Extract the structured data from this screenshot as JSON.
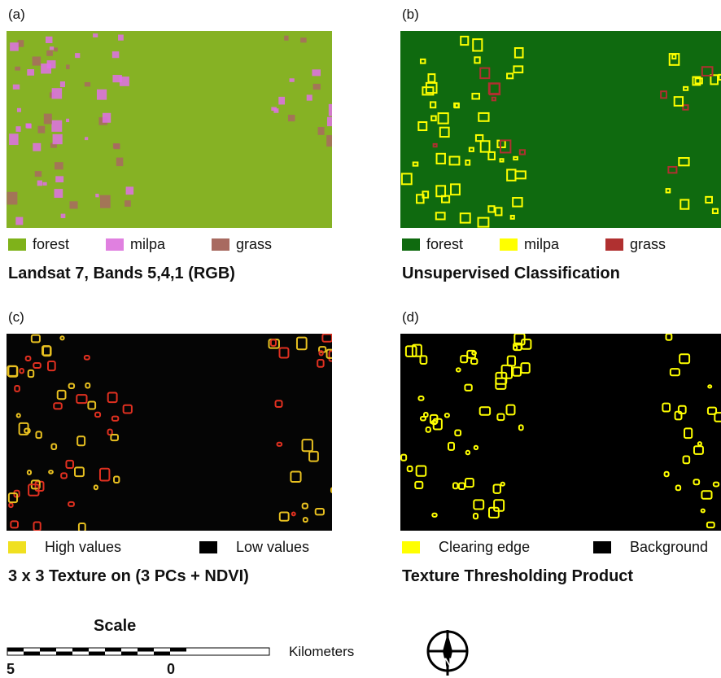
{
  "panels": [
    {
      "label": "(a)",
      "caption": "Landsat 7, Bands 5,4,1 (RGB)",
      "legend": [
        {
          "text": "forest",
          "color": "#7fb21a"
        },
        {
          "text": "milpa",
          "color": "#e080e0"
        },
        {
          "text": "grass",
          "color": "#a86a60"
        }
      ]
    },
    {
      "label": "(b)",
      "caption": "Unsupervised Classification",
      "legend": [
        {
          "text": "forest",
          "color": "#0f6a0f"
        },
        {
          "text": "milpa",
          "color": "#ffff00"
        },
        {
          "text": "grass",
          "color": "#b03030"
        }
      ]
    },
    {
      "label": "(c)",
      "caption": "3 x 3 Texture on (3 PCs + NDVI)",
      "legend": [
        {
          "text": "High values",
          "color": "#f0e020"
        },
        {
          "text": "Low values",
          "color": "#000000"
        }
      ]
    },
    {
      "label": "(d)",
      "caption": "Texture Thresholding Product",
      "legend": [
        {
          "text": "Clearing edge",
          "color": "#ffff00"
        },
        {
          "text": "Background",
          "color": "#000000"
        }
      ]
    }
  ],
  "scale": {
    "title": "Scale",
    "units": "Kilometers",
    "left_label": "5",
    "right_label": "0"
  }
}
